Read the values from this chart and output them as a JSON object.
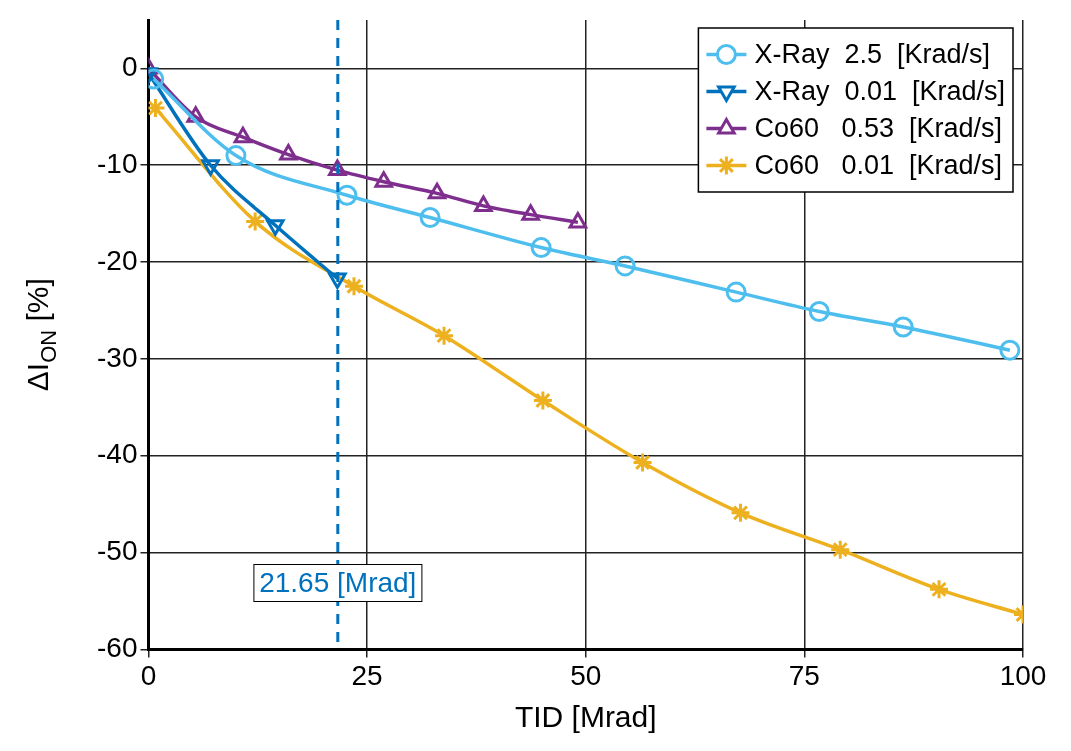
{
  "chart_data": {
    "type": "line",
    "xlabel": "TID [Mrad]",
    "ylabel": "ΔI$_{ON}$ [%]",
    "xlim": [
      0,
      100
    ],
    "ylim": [
      -60,
      5
    ],
    "xticks": [
      0,
      25,
      50,
      75,
      100
    ],
    "yticks": [
      -60,
      -50,
      -40,
      -30,
      -20,
      -10,
      0
    ],
    "grid": true,
    "legend": "top right",
    "line_style": "solid",
    "series": [
      {
        "name": "X-Ray  2.5  [Krad/s]",
        "color": "#4dbeee",
        "marker": "circle",
        "x": [
          0.6,
          10,
          22.7,
          32.2,
          44.9,
          54.5,
          67.2,
          76.7,
          86.3,
          98.5
        ],
        "values": [
          -1.1,
          -9,
          -13.1,
          -15.4,
          -18.5,
          -20.4,
          -23.1,
          -25.1,
          -26.7,
          -29.1
        ]
      },
      {
        "name": "X-Ray  0.01  [Krad/s]",
        "color": "#0072bd",
        "marker": "triangle-down",
        "x": [
          0,
          7.1,
          14.5,
          21.6
        ],
        "values": [
          -0.5,
          -10,
          -16.2,
          -21.7
        ]
      },
      {
        "name": "Co60   0.53  [Krad/s]",
        "color": "#7e2f8e",
        "marker": "triangle",
        "x": [
          0,
          5.4,
          10.8,
          16,
          21.6,
          26.9,
          33,
          38.3,
          43.7,
          49.1
        ],
        "values": [
          0,
          -5,
          -7.1,
          -8.9,
          -10.5,
          -11.7,
          -12.9,
          -14.2,
          -15.1,
          -15.9
        ]
      },
      {
        "name": "Co60   0.01  [Krad/s]",
        "color": "#edb120",
        "marker": "cross",
        "x": [
          0.8,
          12.2,
          23.5,
          33.8,
          45.1,
          56.5,
          67.7,
          79.1,
          90.4,
          100
        ],
        "values": [
          -4.1,
          -15.8,
          -22.5,
          -27.6,
          -34.3,
          -40.7,
          -45.9,
          -49.7,
          -53.8,
          -56.4
        ]
      }
    ],
    "ref_lines": [
      {
        "axis": "x",
        "value": 21.65,
        "label": "21.65 [Mrad]",
        "color": "#0072bd",
        "line_style": "dashed"
      }
    ]
  }
}
